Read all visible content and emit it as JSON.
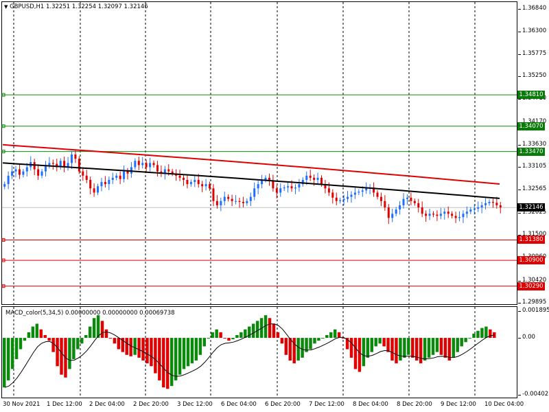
{
  "chart_header": {
    "text": "GBPUSD,H1  1.32251 1.32254 1.32097 1.32146",
    "arrow": "triangle-down-icon"
  },
  "macd_header": {
    "text": "MACD_color(5,34,5) 0.00000000 0.00000000 0.00069738"
  },
  "price_axis_labels": [
    "1.36840",
    "1.36300",
    "1.35775",
    "1.35250",
    "1.34710",
    "1.34170",
    "1.33630",
    "1.33105",
    "1.32565",
    "1.32025",
    "1.31500",
    "1.30960",
    "1.30420",
    "1.29895"
  ],
  "level_tags": [
    {
      "value": "1.34810",
      "kind": "resistance",
      "color": "#0a7a0a"
    },
    {
      "value": "1.34070",
      "kind": "resistance",
      "color": "#0a7a0a"
    },
    {
      "value": "1.33470",
      "kind": "resistance",
      "color": "#0a7a0a"
    },
    {
      "value": "1.32146",
      "kind": "current",
      "color": "#000000"
    },
    {
      "value": "1.31380",
      "kind": "support",
      "color": "#e00000"
    },
    {
      "value": "1.30900",
      "kind": "support",
      "color": "#e00000"
    },
    {
      "value": "1.30290",
      "kind": "support",
      "color": "#e00000"
    }
  ],
  "macd_axis_labels": [
    "0.0018951",
    "0.00",
    "-0.0040231"
  ],
  "time_labels": [
    "30 Nov 2021",
    "1 Dec 12:00",
    "2 Dec 04:00",
    "2 Dec 20:00",
    "3 Dec 12:00",
    "6 Dec 04:00",
    "6 Dec 20:00",
    "7 Dec 12:00",
    "8 Dec 04:00",
    "8 Dec 20:00",
    "9 Dec 12:00",
    "10 Dec 04:00"
  ],
  "colors": {
    "bull": "#1e6fff",
    "bear": "#e00000",
    "ma_slow": "#e00000",
    "ma_fast": "#000000",
    "macd_pos": "#0a8a0a",
    "macd_neg": "#e00000",
    "grid": "#000000"
  },
  "chart_data": {
    "type": "candlestick",
    "symbol": "GBPUSD",
    "timeframe": "H1",
    "last_ohlc": {
      "open": 1.32251,
      "high": 1.32254,
      "low": 1.32097,
      "close": 1.32146
    },
    "ylim": [
      1.2975,
      1.37
    ],
    "closes": [
      1.327,
      1.329,
      1.33,
      1.3305,
      1.3292,
      1.33,
      1.331,
      1.3322,
      1.3305,
      1.329,
      1.33,
      1.3315,
      1.332,
      1.3318,
      1.331,
      1.3325,
      1.331,
      1.332,
      1.334,
      1.333,
      1.33,
      1.329,
      1.328,
      1.326,
      1.325,
      1.3265,
      1.3275,
      1.327,
      1.328,
      1.3285,
      1.329,
      1.3282,
      1.33,
      1.3295,
      1.331,
      1.3325,
      1.3315,
      1.332,
      1.331,
      1.332,
      1.3315,
      1.33,
      1.3295,
      1.3305,
      1.33,
      1.3295,
      1.329,
      1.3285,
      1.328,
      1.327,
      1.3275,
      1.328,
      1.327,
      1.3265,
      1.327,
      1.326,
      1.323,
      1.322,
      1.323,
      1.324,
      1.3235,
      1.323,
      1.323,
      1.3228,
      1.3225,
      1.323,
      1.324,
      1.326,
      1.327,
      1.328,
      1.3285,
      1.3278,
      1.326,
      1.325,
      1.326,
      1.3262,
      1.3265,
      1.326,
      1.3262,
      1.327,
      1.328,
      1.329,
      1.3285,
      1.328,
      1.3285,
      1.327,
      1.326,
      1.325,
      1.3238,
      1.323,
      1.3232,
      1.3235,
      1.324,
      1.3245,
      1.325,
      1.3252,
      1.3255,
      1.326,
      1.3262,
      1.325,
      1.324,
      1.323,
      1.3215,
      1.319,
      1.32,
      1.321,
      1.322,
      1.3235,
      1.3238,
      1.323,
      1.3225,
      1.3215,
      1.32,
      1.3195,
      1.32,
      1.3198,
      1.3195,
      1.32,
      1.3205,
      1.32,
      1.3195,
      1.319,
      1.3192,
      1.32,
      1.3205,
      1.321,
      1.3212,
      1.3215,
      1.322,
      1.3225,
      1.3228,
      1.3226,
      1.322,
      1.3215
    ],
    "ma_slow": {
      "start": 1.3363,
      "end": 1.3269
    },
    "ma_fast": {
      "start": 1.332,
      "end": 1.3235
    },
    "levels": [
      1.3481,
      1.3407,
      1.3347,
      1.3138,
      1.309,
      1.3029
    ],
    "macd": {
      "ylim": [
        -0.0040231,
        0.0018951
      ],
      "histogram": [
        -0.0035,
        -0.003,
        -0.0022,
        -0.0015,
        -0.0008,
        -0.0002,
        0.0004,
        0.0008,
        0.001,
        0.0006,
        0.0002,
        -0.0002,
        -0.001,
        -0.002,
        -0.0026,
        -0.0028,
        -0.0022,
        -0.0015,
        -0.0008,
        -0.0004,
        0.0002,
        0.0008,
        0.0014,
        0.0016,
        0.0012,
        0.0006,
        0.0,
        -0.0004,
        -0.0008,
        -0.001,
        -0.0012,
        -0.0013,
        -0.0012,
        -0.0014,
        -0.0016,
        -0.0018,
        -0.002,
        -0.0025,
        -0.003,
        -0.0035,
        -0.0036,
        -0.0034,
        -0.003,
        -0.0026,
        -0.0022,
        -0.002,
        -0.0018,
        -0.0016,
        -0.0012,
        -0.0006,
        0.0,
        0.0004,
        0.0006,
        0.0004,
        0.0,
        -0.0002,
        -0.0001,
        0.0002,
        0.0004,
        0.0006,
        0.0008,
        0.001,
        0.0012,
        0.0014,
        0.0016,
        0.0014,
        0.001,
        0.0004,
        -0.0004,
        -0.0012,
        -0.0016,
        -0.0018,
        -0.0016,
        -0.0014,
        -0.001,
        -0.0008,
        -0.0004,
        -0.0002,
        0.0,
        0.0002,
        0.0004,
        0.0006,
        0.0004,
        0.0,
        -0.0008,
        -0.0014,
        -0.0022,
        -0.0024,
        -0.002,
        -0.0014,
        -0.001,
        -0.0006,
        -0.0004,
        -0.0006,
        -0.001,
        -0.0016,
        -0.0018,
        -0.0016,
        -0.0014,
        -0.0012,
        -0.0014,
        -0.0016,
        -0.0018,
        -0.0016,
        -0.0014,
        -0.0012,
        -0.001,
        -0.0012,
        -0.0014,
        -0.0016,
        -0.0014,
        -0.001,
        -0.0006,
        -0.0003,
        0.0,
        0.0003,
        0.0005,
        0.0007,
        0.0008,
        0.0006,
        0.0004
      ]
    }
  }
}
